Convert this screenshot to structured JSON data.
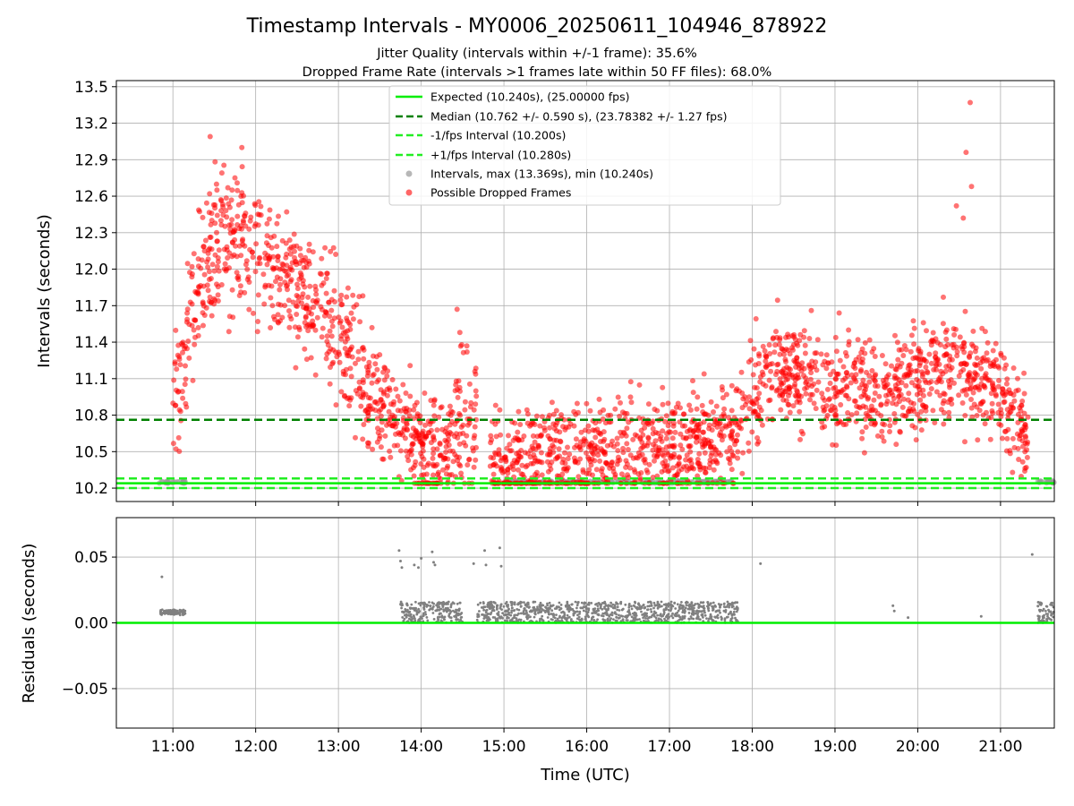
{
  "figure": {
    "title": "Timestamp Intervals - MY0006_20250611_104946_878922",
    "subtitle_1": "Jitter Quality (intervals within +/-1 frame): 35.6%",
    "subtitle_2": "Dropped Frame Rate (intervals >1 frames late within 50 FF files): 68.0%"
  },
  "chart_data": [
    {
      "type": "scatter",
      "panel": "intervals",
      "ylabel": "Intervals (seconds)",
      "xlim": [
        "10:19",
        "21:39"
      ],
      "ylim": [
        10.09,
        13.55
      ],
      "y_ticks": [
        10.2,
        10.5,
        10.8,
        11.1,
        11.4,
        11.7,
        12.0,
        12.3,
        12.6,
        12.9,
        13.2,
        13.5
      ],
      "y_tick_labels": [
        "10.2",
        "10.5",
        "10.8",
        "11.1",
        "11.4",
        "11.7",
        "12.0",
        "12.3",
        "12.6",
        "12.9",
        "13.2",
        "13.5"
      ],
      "grid": true,
      "legend_position": "upper center",
      "reference_lines": [
        {
          "name": "Expected (10.240s), (25.00000 fps)",
          "y": 10.24,
          "color": "#00ee00",
          "style": "solid"
        },
        {
          "name": "Median (10.762 +/- 0.590 s), (23.78382 +/- 1.27 fps)",
          "y": 10.762,
          "color": "#008000",
          "style": "dashed"
        },
        {
          "name": "-1/fps Interval (10.200s)",
          "y": 10.2,
          "color": "#22ee22",
          "style": "dashed"
        },
        {
          "name": "+1/fps Interval (10.280s)",
          "y": 10.28,
          "color": "#22ee22",
          "style": "dashed"
        }
      ],
      "series": [
        {
          "name": "Intervals, max (13.369s), min (10.240s)",
          "color": "#999999",
          "segments": [
            {
              "start": "10:50",
              "end": "11:09",
              "y": 10.25,
              "spread": 0.02
            },
            {
              "start": "15:00",
              "end": "17:46",
              "y": 10.25,
              "spread": 0.02
            },
            {
              "start": "21:27",
              "end": "21:39",
              "y": 10.25,
              "spread": 0.02
            }
          ]
        },
        {
          "name": "Possible Dropped Frames",
          "color": "#ff0000",
          "profile": [
            {
              "t": "11:00",
              "y": 10.85,
              "spread": 0.2
            },
            {
              "t": "11:10",
              "y": 11.4,
              "spread": 0.3
            },
            {
              "t": "11:20",
              "y": 11.9,
              "spread": 0.3
            },
            {
              "t": "11:30",
              "y": 12.2,
              "spread": 0.3
            },
            {
              "t": "11:50",
              "y": 12.25,
              "spread": 0.3
            },
            {
              "t": "12:10",
              "y": 12.05,
              "spread": 0.25
            },
            {
              "t": "12:40",
              "y": 11.75,
              "spread": 0.25
            },
            {
              "t": "13:00",
              "y": 11.45,
              "spread": 0.25
            },
            {
              "t": "13:20",
              "y": 11.05,
              "spread": 0.25
            },
            {
              "t": "13:40",
              "y": 10.75,
              "spread": 0.22
            },
            {
              "t": "14:00",
              "y": 10.55,
              "spread": 0.22
            },
            {
              "t": "14:20",
              "y": 10.5,
              "spread": 0.22
            },
            {
              "t": "14:25",
              "y": 10.7,
              "spread": 0.25
            },
            {
              "t": "14:40",
              "y": 10.75,
              "spread": 0.3
            },
            {
              "t": "14:50",
              "y": 10.4,
              "spread": 0.2
            },
            {
              "t": "17:45",
              "y": 10.6,
              "spread": 0.2
            },
            {
              "t": "18:00",
              "y": 10.95,
              "spread": 0.22
            },
            {
              "t": "18:20",
              "y": 11.2,
              "spread": 0.2
            },
            {
              "t": "19:00",
              "y": 11.0,
              "spread": 0.2
            },
            {
              "t": "19:30",
              "y": 10.95,
              "spread": 0.2
            },
            {
              "t": "20:00",
              "y": 11.1,
              "spread": 0.2
            },
            {
              "t": "20:30",
              "y": 11.2,
              "spread": 0.22
            },
            {
              "t": "21:00",
              "y": 11.0,
              "spread": 0.2
            },
            {
              "t": "21:20",
              "y": 10.6,
              "spread": 0.2
            }
          ],
          "outliers": [
            {
              "t": "11:27",
              "y": 13.09
            },
            {
              "t": "11:50",
              "y": 13.0
            },
            {
              "t": "20:35",
              "y": 12.96
            },
            {
              "t": "20:38",
              "y": 13.37
            },
            {
              "t": "20:39",
              "y": 12.68
            },
            {
              "t": "20:28",
              "y": 12.52
            },
            {
              "t": "20:33",
              "y": 12.42
            },
            {
              "t": "14:26",
              "y": 11.67
            },
            {
              "t": "14:28",
              "y": 11.48
            },
            {
              "t": "19:03",
              "y": 11.64
            }
          ]
        }
      ]
    },
    {
      "type": "scatter",
      "panel": "residuals",
      "xlabel": "Time (UTC)",
      "ylabel": "Residuals (seconds)",
      "xlim": [
        "10:19",
        "21:39"
      ],
      "ylim": [
        -0.08,
        0.08
      ],
      "x_ticks": [
        "11:00",
        "12:00",
        "13:00",
        "14:00",
        "15:00",
        "16:00",
        "17:00",
        "18:00",
        "19:00",
        "20:00",
        "21:00"
      ],
      "y_ticks": [
        -0.05,
        0.0,
        0.05
      ],
      "y_tick_labels": [
        "−0.05",
        "0.00",
        "0.05"
      ],
      "grid": true,
      "reference_line": {
        "y": 0.0,
        "color": "#00ee00"
      },
      "series": [
        {
          "name": "Residuals",
          "color": "#808080",
          "segments": [
            {
              "start": "10:50",
              "end": "11:09",
              "y_min": 0.006,
              "y_max": 0.01
            },
            {
              "start": "13:45",
              "end": "14:30",
              "y_min": 0.0,
              "y_max": 0.016
            },
            {
              "start": "14:40",
              "end": "17:50",
              "y_min": 0.0,
              "y_max": 0.016
            },
            {
              "start": "21:27",
              "end": "21:39",
              "y_min": 0.0,
              "y_max": 0.016
            }
          ],
          "outliers": [
            {
              "t": "10:52",
              "y": 0.035
            },
            {
              "t": "13:44",
              "y": 0.055
            },
            {
              "t": "13:45",
              "y": 0.047
            },
            {
              "t": "13:46",
              "y": 0.042
            },
            {
              "t": "13:55",
              "y": 0.044
            },
            {
              "t": "13:58",
              "y": 0.042
            },
            {
              "t": "14:00",
              "y": 0.049
            },
            {
              "t": "14:08",
              "y": 0.054
            },
            {
              "t": "14:09",
              "y": 0.046
            },
            {
              "t": "14:10",
              "y": 0.044
            },
            {
              "t": "14:38",
              "y": 0.045
            },
            {
              "t": "14:46",
              "y": 0.055
            },
            {
              "t": "14:47",
              "y": 0.044
            },
            {
              "t": "14:57",
              "y": 0.057
            },
            {
              "t": "14:58",
              "y": 0.043
            },
            {
              "t": "18:06",
              "y": 0.045
            },
            {
              "t": "19:42",
              "y": 0.013
            },
            {
              "t": "19:43",
              "y": 0.009
            },
            {
              "t": "19:53",
              "y": 0.004
            },
            {
              "t": "20:46",
              "y": 0.005
            },
            {
              "t": "21:23",
              "y": 0.052
            }
          ]
        }
      ]
    }
  ]
}
